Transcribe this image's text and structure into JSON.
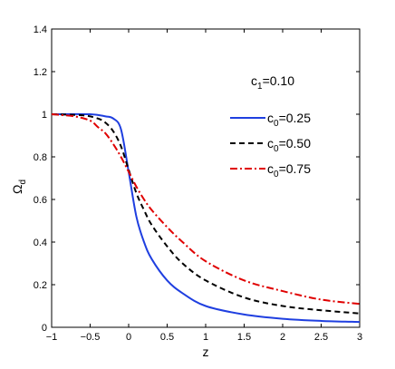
{
  "chart_data": {
    "type": "line",
    "title": "",
    "xlabel": "z",
    "ylabel_main": "Ω",
    "ylabel_sub": "d",
    "xlim": [
      -1,
      3
    ],
    "ylim": [
      0,
      1.4
    ],
    "xticks": [
      "−1",
      "−0.5",
      "0",
      "0.5",
      "1",
      "1.5",
      "2",
      "2.5",
      "3"
    ],
    "xtick_values": [
      -1,
      -0.5,
      0,
      0.5,
      1,
      1.5,
      2,
      2.5,
      3
    ],
    "yticks": [
      "0",
      "0.2",
      "0.4",
      "0.6",
      "0.8",
      "1",
      "1.2",
      "1.4"
    ],
    "ytick_values": [
      0,
      0.2,
      0.4,
      0.6,
      0.8,
      1.0,
      1.2,
      1.4
    ],
    "grid": false,
    "legend_position": "right",
    "annotation": {
      "main": "c",
      "sub": "1",
      "rest": "=0.10"
    },
    "series": [
      {
        "name": "c0=0.25",
        "label_main": "c",
        "label_sub": "0",
        "label_rest": "=0.25",
        "color": "#1f3fe0",
        "dash": "solid",
        "x": [
          -1,
          -0.5,
          -0.3,
          -0.2,
          -0.1,
          0,
          0.1,
          0.2,
          0.3,
          0.5,
          0.7,
          1.0,
          1.5,
          2.0,
          2.5,
          3.0
        ],
        "y": [
          1.0,
          1.0,
          0.99,
          0.98,
          0.93,
          0.73,
          0.52,
          0.4,
          0.32,
          0.22,
          0.16,
          0.1,
          0.06,
          0.04,
          0.03,
          0.025
        ]
      },
      {
        "name": "c0=0.50",
        "label_main": "c",
        "label_sub": "0",
        "label_rest": "=0.50",
        "color": "#000000",
        "dash": "dashed",
        "x": [
          -1,
          -0.6,
          -0.4,
          -0.3,
          -0.2,
          -0.1,
          0,
          0.1,
          0.2,
          0.3,
          0.5,
          0.7,
          1.0,
          1.5,
          2.0,
          2.5,
          3.0
        ],
        "y": [
          1.0,
          0.995,
          0.98,
          0.96,
          0.92,
          0.85,
          0.74,
          0.63,
          0.55,
          0.48,
          0.38,
          0.3,
          0.22,
          0.14,
          0.1,
          0.08,
          0.065
        ]
      },
      {
        "name": "c0=0.75",
        "label_main": "c",
        "label_sub": "0",
        "label_rest": "=0.75",
        "color": "#e00000",
        "dash": "dashdot",
        "x": [
          -1,
          -0.7,
          -0.5,
          -0.4,
          -0.3,
          -0.2,
          -0.1,
          0,
          0.1,
          0.2,
          0.3,
          0.5,
          0.7,
          1.0,
          1.5,
          2.0,
          2.5,
          3.0
        ],
        "y": [
          1.0,
          0.99,
          0.97,
          0.94,
          0.91,
          0.86,
          0.8,
          0.73,
          0.66,
          0.6,
          0.55,
          0.47,
          0.4,
          0.31,
          0.22,
          0.17,
          0.13,
          0.11
        ]
      }
    ]
  }
}
